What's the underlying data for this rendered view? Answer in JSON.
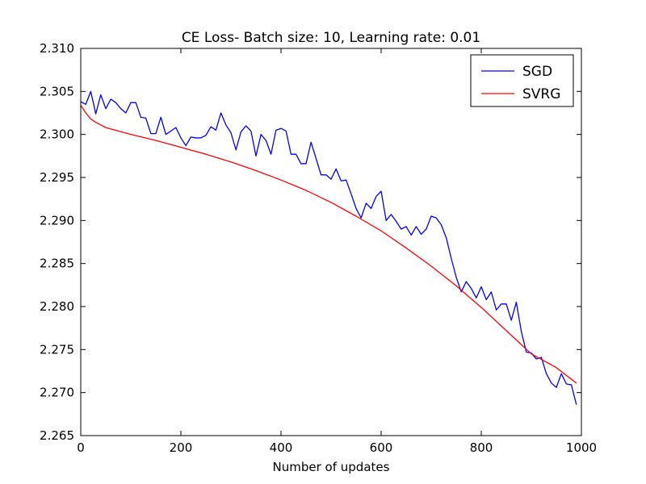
{
  "chart_data": {
    "type": "line",
    "title": "CE Loss- Batch size: 10, Learning rate: 0.01",
    "xlabel": "Number of updates",
    "ylabel": "",
    "xlim": [
      0,
      1000
    ],
    "ylim": [
      2.265,
      2.31
    ],
    "x_ticks": [
      0,
      200,
      400,
      600,
      800,
      1000
    ],
    "x_tick_labels": [
      "0",
      "200",
      "400",
      "600",
      "800",
      "1000"
    ],
    "y_ticks": [
      2.265,
      2.27,
      2.275,
      2.28,
      2.285,
      2.29,
      2.295,
      2.3,
      2.305,
      2.31
    ],
    "y_tick_labels": [
      "2.265",
      "2.270",
      "2.275",
      "2.280",
      "2.285",
      "2.290",
      "2.295",
      "2.300",
      "2.305",
      "2.310"
    ],
    "grid": false,
    "legend_position": "top-right",
    "series": [
      {
        "name": "SGD",
        "color": "#0000ff",
        "x": [
          0,
          10,
          20,
          30,
          40,
          50,
          60,
          70,
          80,
          90,
          100,
          110,
          120,
          130,
          140,
          150,
          160,
          170,
          180,
          190,
          200,
          210,
          220,
          230,
          240,
          250,
          260,
          270,
          280,
          290,
          300,
          310,
          320,
          330,
          340,
          350,
          360,
          370,
          380,
          390,
          400,
          410,
          420,
          430,
          440,
          450,
          460,
          470,
          480,
          490,
          500,
          510,
          520,
          530,
          540,
          550,
          560,
          570,
          580,
          590,
          600,
          610,
          620,
          630,
          640,
          650,
          660,
          670,
          680,
          690,
          700,
          710,
          720,
          730,
          740,
          750,
          760,
          770,
          780,
          790,
          800,
          810,
          820,
          830,
          840,
          850,
          860,
          870,
          880,
          890,
          900,
          910,
          920,
          930,
          940,
          950,
          960,
          970,
          980,
          990
        ],
        "values": [
          2.3038,
          2.3035,
          2.305,
          2.3024,
          2.3046,
          2.303,
          2.3041,
          2.3037,
          2.303,
          2.3025,
          2.3037,
          2.3037,
          2.302,
          2.3019,
          2.3001,
          2.3001,
          2.302,
          2.3,
          2.3004,
          2.3008,
          2.2996,
          2.2987,
          2.2997,
          2.2996,
          2.2996,
          2.2999,
          2.3009,
          2.3005,
          2.3025,
          2.3011,
          2.3002,
          2.2982,
          2.3003,
          2.301,
          2.3004,
          2.2975,
          2.3,
          2.2993,
          2.2977,
          2.3005,
          2.3007,
          2.3004,
          2.2977,
          2.2977,
          2.2966,
          2.2966,
          2.2991,
          2.2972,
          2.2953,
          2.2953,
          2.2948,
          2.296,
          2.2946,
          2.2947,
          2.2931,
          2.2914,
          2.2903,
          2.292,
          2.2914,
          2.2928,
          2.2934,
          2.29,
          2.2907,
          2.2899,
          2.289,
          2.2893,
          2.2883,
          2.2893,
          2.2884,
          2.289,
          2.2905,
          2.2903,
          2.2895,
          2.288,
          2.2856,
          2.2834,
          2.2817,
          2.2829,
          2.2821,
          2.281,
          2.2823,
          2.2808,
          2.2817,
          2.2796,
          2.2803,
          2.2803,
          2.2784,
          2.2805,
          2.2771,
          2.2747,
          2.2746,
          2.2739,
          2.2741,
          2.2722,
          2.2711,
          2.2706,
          2.2722,
          2.271,
          2.2709,
          2.2686
        ]
      },
      {
        "name": "SVRG",
        "color": "#ff0000",
        "x": [
          0,
          10,
          20,
          30,
          40,
          50,
          75,
          100,
          150,
          200,
          250,
          300,
          350,
          400,
          450,
          500,
          550,
          600,
          650,
          700,
          750,
          800,
          850,
          900,
          950,
          990
        ],
        "values": [
          2.3034,
          2.3025,
          2.3018,
          2.3014,
          2.3011,
          2.3008,
          2.3004,
          2.3,
          2.2993,
          2.2985,
          2.2977,
          2.2968,
          2.2958,
          2.2947,
          2.2935,
          2.2921,
          2.2905,
          2.2888,
          2.2868,
          2.2847,
          2.2824,
          2.2799,
          2.2772,
          2.2745,
          2.2729,
          2.2711
        ]
      }
    ]
  }
}
